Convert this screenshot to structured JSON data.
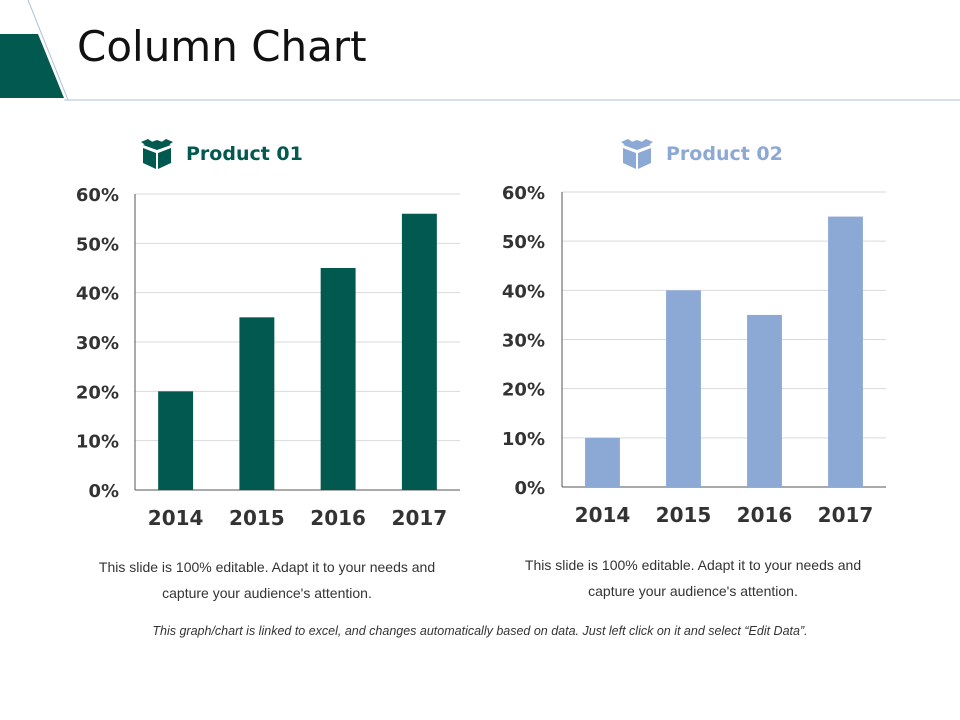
{
  "slide": {
    "title": "Column Chart",
    "footnote": "This graph/chart is linked to excel, and changes automatically based on data. Just left click on it and select “Edit Data”."
  },
  "products": [
    {
      "label": "Product 01",
      "icon": "box-icon",
      "color": "#02594F",
      "caption_line1": "This slide is 100% editable. Adapt it to your needs and",
      "caption_line2": "capture your audience's attention."
    },
    {
      "label": "Product 02",
      "icon": "box-icon",
      "color": "#8CA8D5",
      "caption_line1": "This slide is 100% editable. Adapt it to your needs and",
      "caption_line2": "capture your audience's attention."
    }
  ],
  "colors": {
    "accent": "#02594F",
    "header_line": "#A9C0D4",
    "product_02_label": "#8CA8D5"
  },
  "chart_data": [
    {
      "type": "bar",
      "title": "Product 01",
      "categories": [
        "2014",
        "2015",
        "2016",
        "2017"
      ],
      "values": [
        20,
        35,
        45,
        56
      ],
      "ylim": [
        0,
        60
      ],
      "yticks": [
        "0%",
        "10%",
        "20%",
        "30%",
        "40%",
        "50%",
        "60%"
      ],
      "xlabel": "",
      "ylabel": "",
      "grid": true
    },
    {
      "type": "bar",
      "title": "Product 02",
      "categories": [
        "2014",
        "2015",
        "2016",
        "2017"
      ],
      "values": [
        10,
        40,
        35,
        55
      ],
      "ylim": [
        0,
        60
      ],
      "yticks": [
        "0%",
        "10%",
        "20%",
        "30%",
        "40%",
        "50%",
        "60%"
      ],
      "xlabel": "",
      "ylabel": "",
      "grid": true
    }
  ]
}
